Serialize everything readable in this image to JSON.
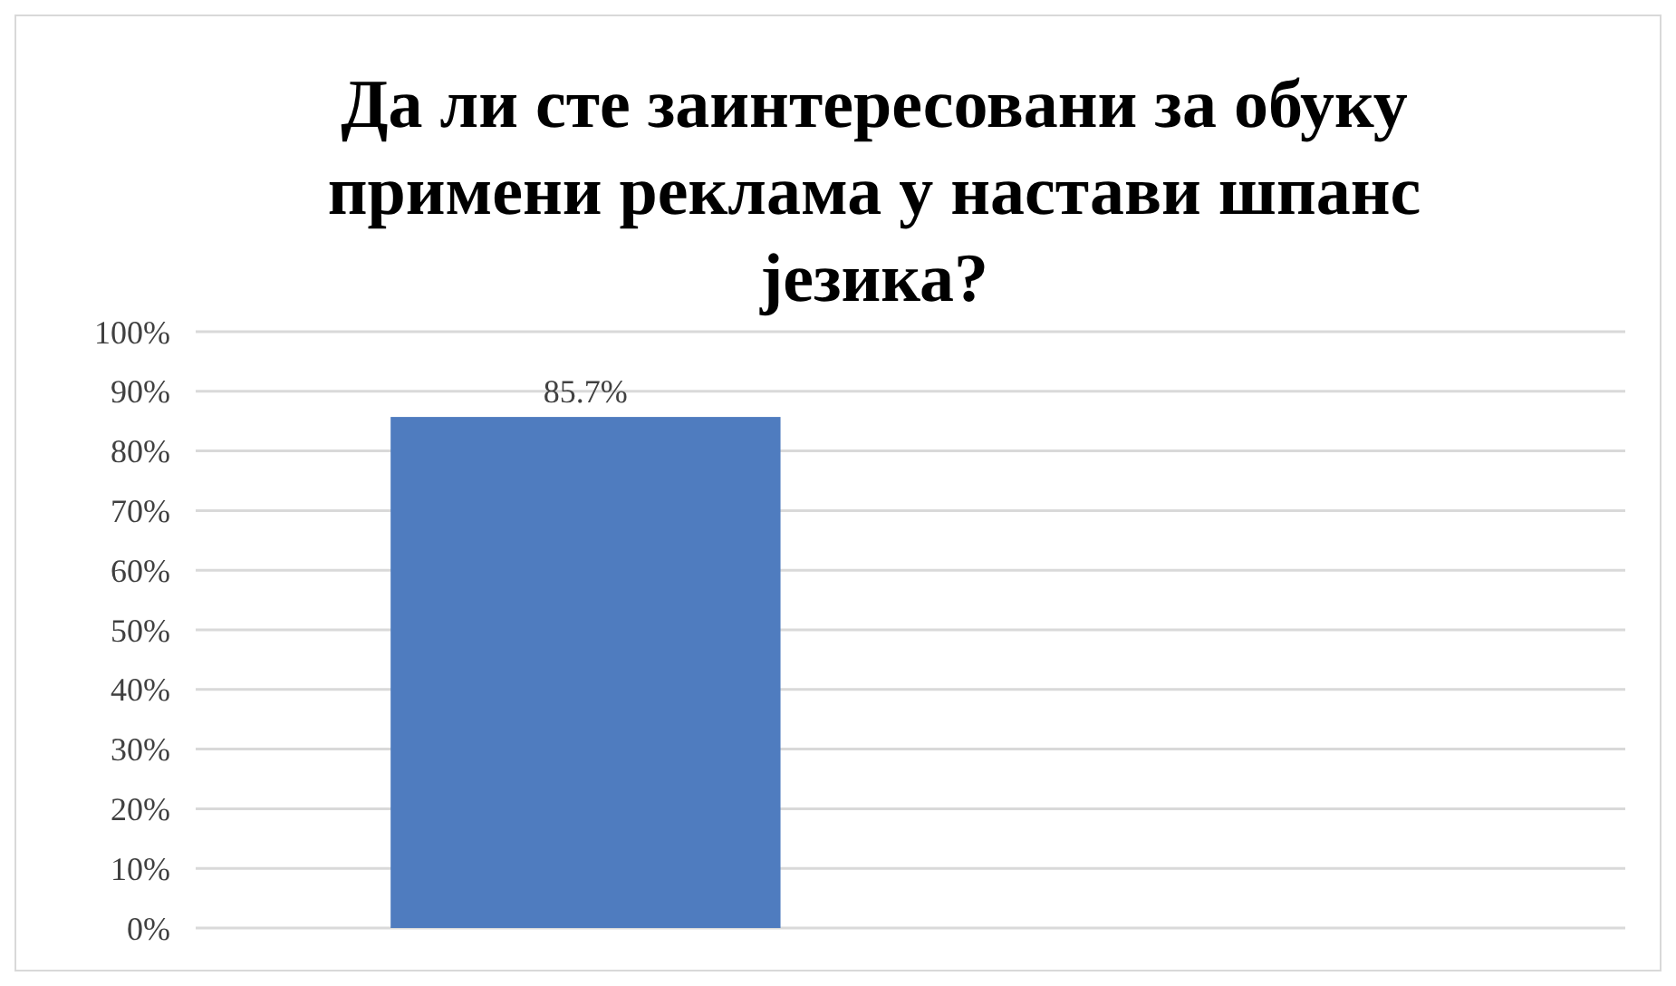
{
  "chart_data": {
    "type": "bar",
    "title": "Да ли сте заинтересовани за обуку\nпримени реклама у настави шпанс\nјезика?",
    "categories": [
      null,
      null
    ],
    "values": [
      85.7,
      null
    ],
    "value_labels": [
      "85.7%",
      null
    ],
    "color": "#4f7cbf",
    "ylim": [
      0,
      100
    ],
    "yticks": [
      {
        "value": 0,
        "label": "0%"
      },
      {
        "value": 10,
        "label": "10%"
      },
      {
        "value": 20,
        "label": "20%"
      },
      {
        "value": 30,
        "label": "30%"
      },
      {
        "value": 40,
        "label": "40%"
      },
      {
        "value": 50,
        "label": "50%"
      },
      {
        "value": 60,
        "label": "60%"
      },
      {
        "value": 70,
        "label": "70%"
      },
      {
        "value": 80,
        "label": "80%"
      },
      {
        "value": 90,
        "label": "90%"
      },
      {
        "value": 100,
        "label": "100%"
      }
    ],
    "grid": "y"
  }
}
